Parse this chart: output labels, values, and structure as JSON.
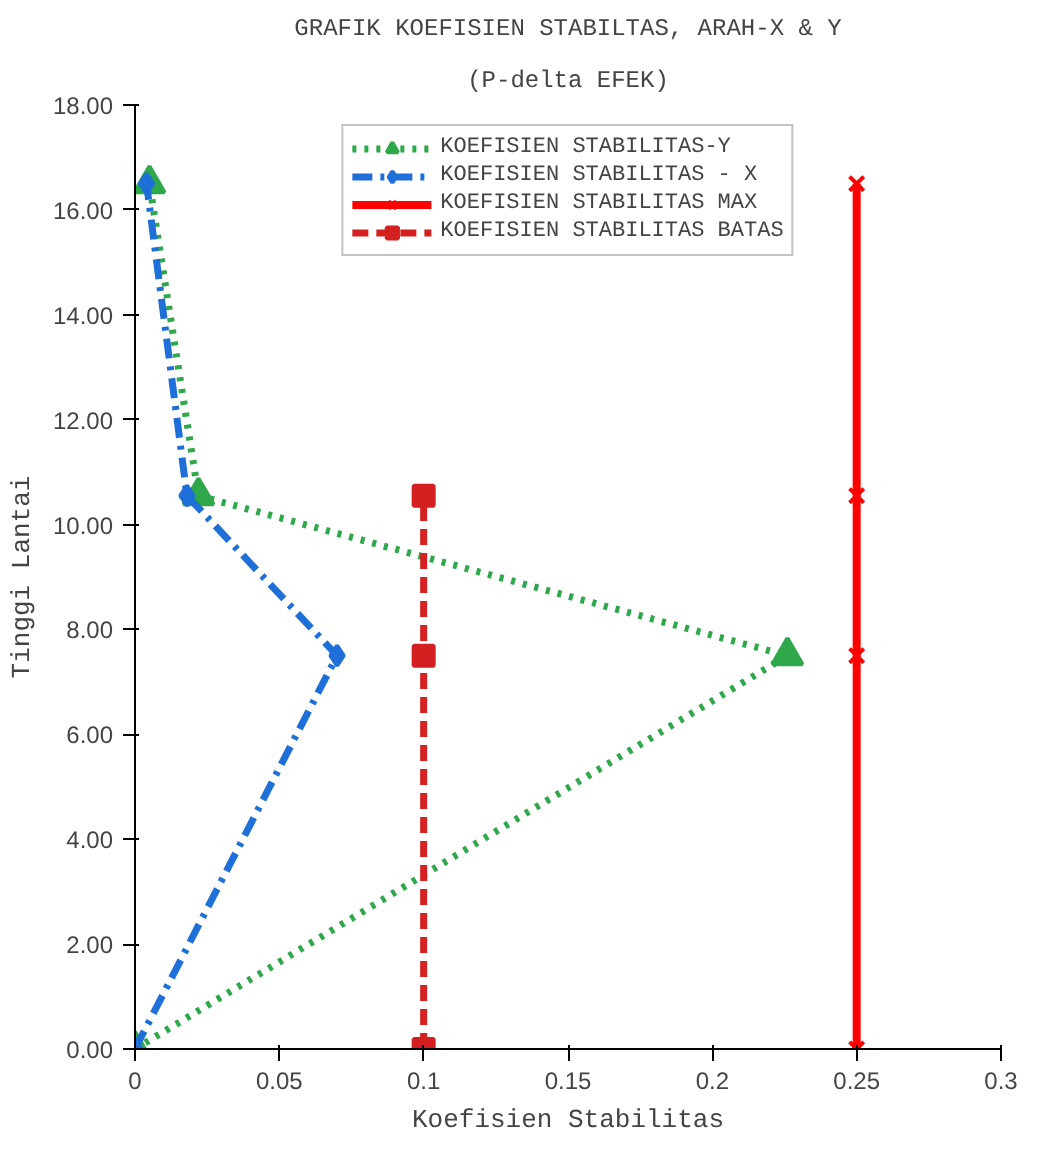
{
  "chart_data": {
    "type": "line",
    "title": "GRAFIK KOEFISIEN STABILTAS, ARAH-X & Y",
    "subtitle": "(P-delta EFEK)",
    "xlabel": "Koefisien Stabilitas",
    "ylabel": "Tinggi Lantai",
    "xlim": [
      0,
      0.3
    ],
    "ylim": [
      0,
      18
    ],
    "xticks": [
      0,
      0.05,
      0.1,
      0.15,
      0.2,
      0.25,
      0.3
    ],
    "yticks": [
      {
        "value": 0,
        "label": "0.00"
      },
      {
        "value": 2,
        "label": "2.00"
      },
      {
        "value": 4,
        "label": "4.00"
      },
      {
        "value": 6,
        "label": "6.00"
      },
      {
        "value": 8,
        "label": "8.00"
      },
      {
        "value": 10,
        "label": "10.00"
      },
      {
        "value": 12,
        "label": "12.00"
      },
      {
        "value": 14,
        "label": "14.00"
      },
      {
        "value": 16,
        "label": "16.00"
      },
      {
        "value": 18,
        "label": "18.00"
      }
    ],
    "grid": false,
    "legend": "top",
    "series": [
      {
        "name": "KOEFISIEN STABILITAS-Y",
        "color": "#2ea84a",
        "marker": "triangle",
        "line_style": "dotted",
        "x": [
          0,
          0.226,
          0.022,
          0.005
        ],
        "values": [
          0,
          7.5,
          10.55,
          16.5
        ]
      },
      {
        "name": "KOEFISIEN STABILITAS - X",
        "color": "#1f6fd8",
        "marker": "diamond",
        "line_style": "dashdot",
        "x": [
          0,
          0.07,
          0.018,
          0.004
        ],
        "values": [
          0,
          7.5,
          10.55,
          16.5
        ]
      },
      {
        "name": "KOEFISIEN STABILITAS MAX",
        "color": "#ff0000",
        "marker": "cross",
        "line_style": "solid",
        "x": [
          0.25,
          0.25,
          0.25,
          0.25
        ],
        "values": [
          0,
          7.5,
          10.55,
          16.5
        ]
      },
      {
        "name": "KOEFISIEN STABILITAS BATAS",
        "color": "#d42020",
        "marker": "square",
        "line_style": "dashed",
        "x": [
          0.1,
          0.1,
          0.1
        ],
        "values": [
          0,
          7.5,
          10.55
        ]
      }
    ]
  }
}
